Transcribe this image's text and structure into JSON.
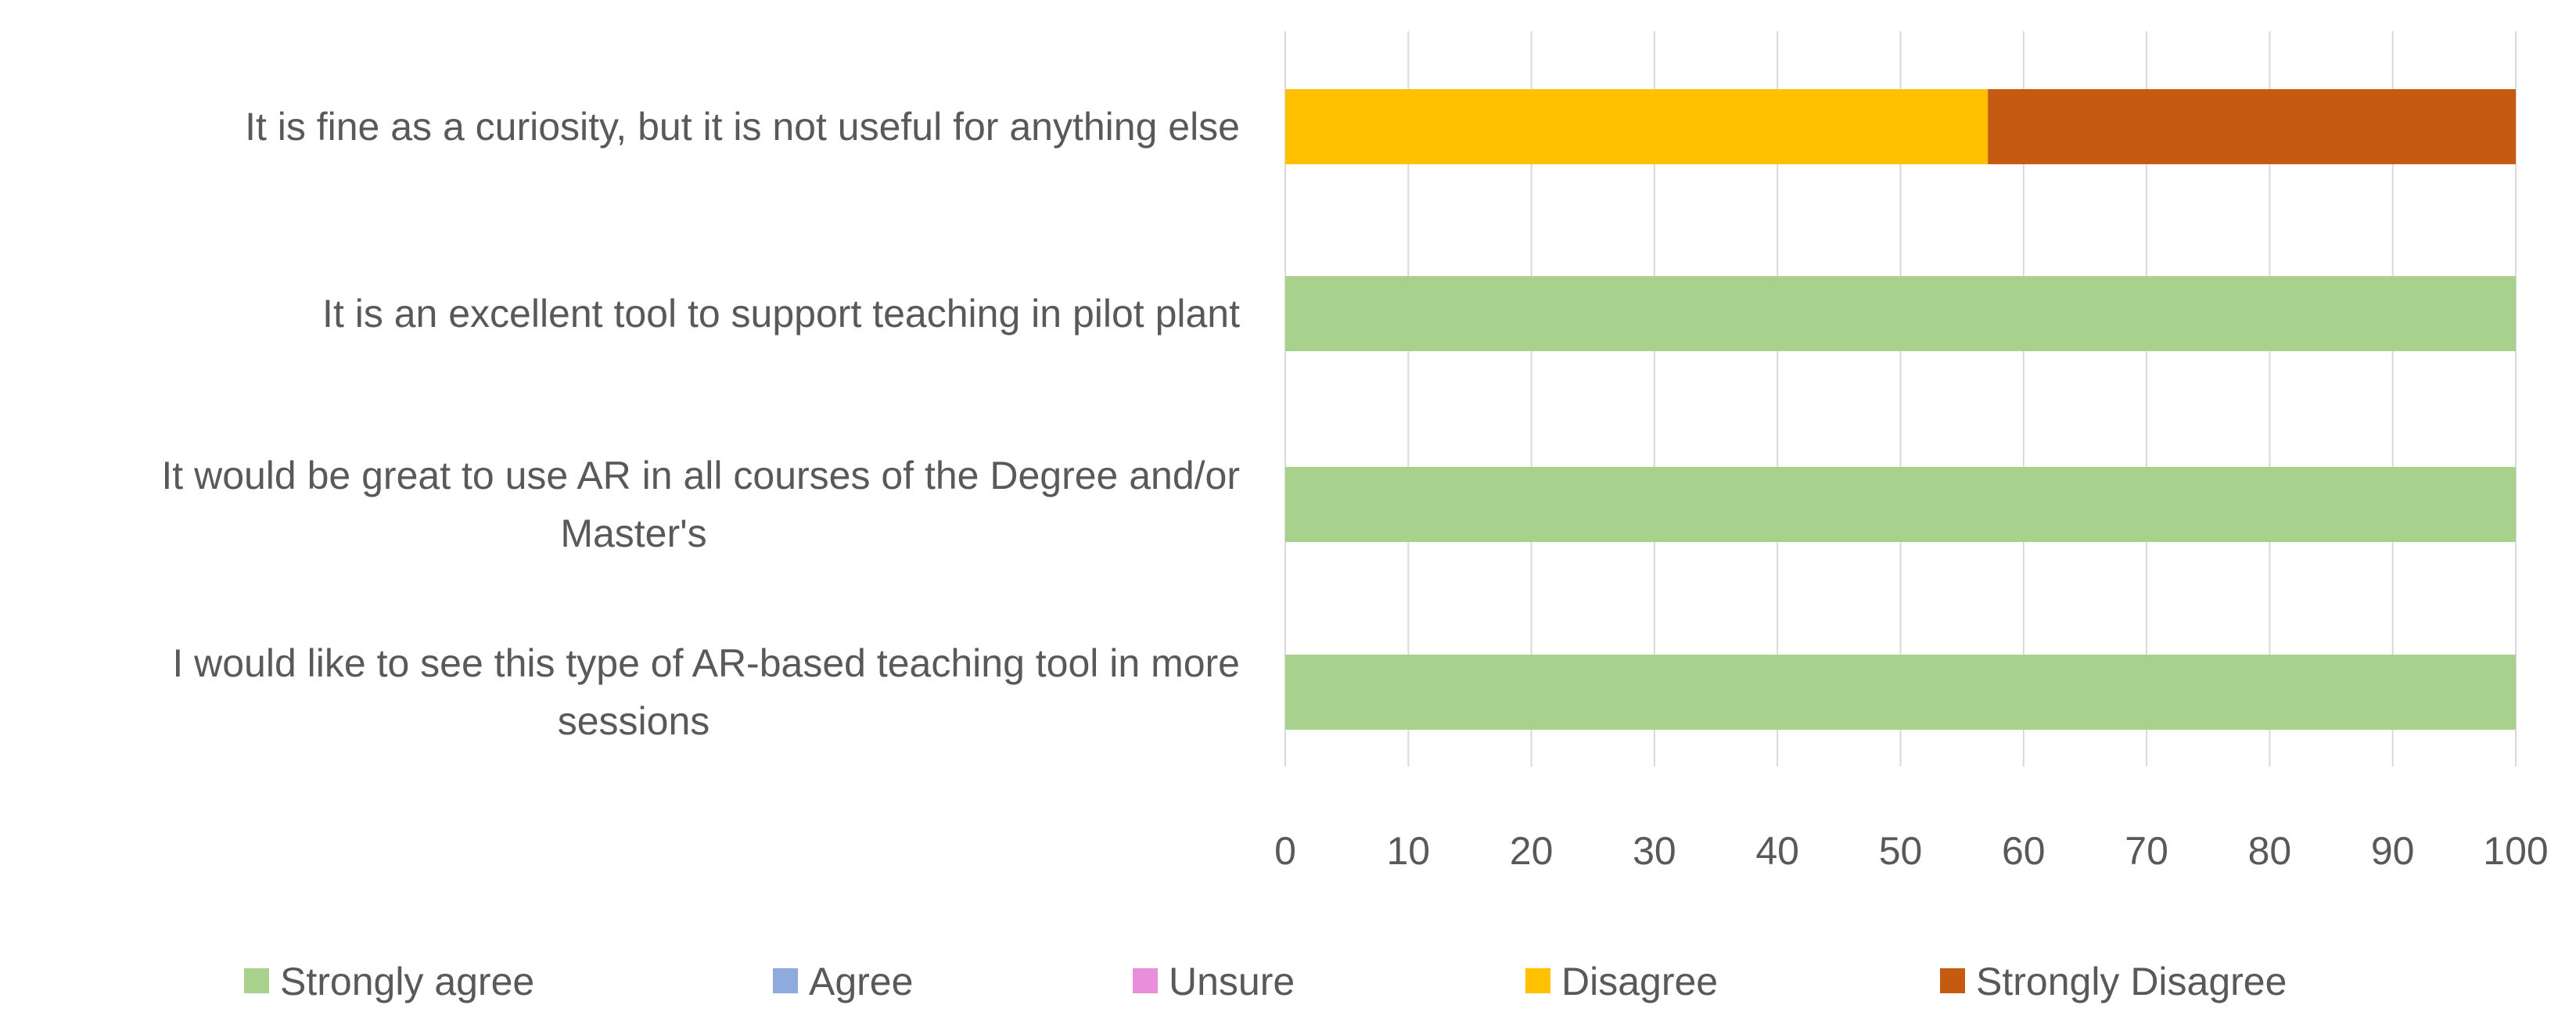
{
  "chart_data": {
    "type": "bar",
    "orientation": "horizontal",
    "stacked": true,
    "categories": [
      [
        "It is fine as a curiosity, but it is not useful for anything else"
      ],
      [
        "It is an excellent tool to support teaching in pilot plant"
      ],
      [
        "It would be great to use AR in all courses of the Degree and/or",
        "Master's"
      ],
      [
        "I would like to see this type of AR-based teaching tool in more",
        "sessions"
      ]
    ],
    "series": [
      {
        "name": "Strongly agree",
        "color": "#A9D18E",
        "values": [
          0,
          100,
          100,
          100
        ]
      },
      {
        "name": "Agree",
        "color": "#8FAADC",
        "values": [
          0,
          0,
          0,
          0
        ]
      },
      {
        "name": "Unsure",
        "color": "#E88EDB",
        "values": [
          0,
          0,
          0,
          0
        ]
      },
      {
        "name": "Disagree",
        "color": "#FFC000",
        "values": [
          57.1,
          0,
          0,
          0
        ]
      },
      {
        "name": "Strongly Disagree",
        "color": "#C55A11",
        "values": [
          42.9,
          0,
          0,
          0
        ]
      }
    ],
    "xlim": [
      0,
      100
    ],
    "xticks": [
      "0",
      "10",
      "20",
      "30",
      "40",
      "50",
      "60",
      "70",
      "80",
      "90",
      "100"
    ],
    "grid": true,
    "legend_position": "bottom",
    "title": "",
    "xlabel": "",
    "ylabel": ""
  }
}
